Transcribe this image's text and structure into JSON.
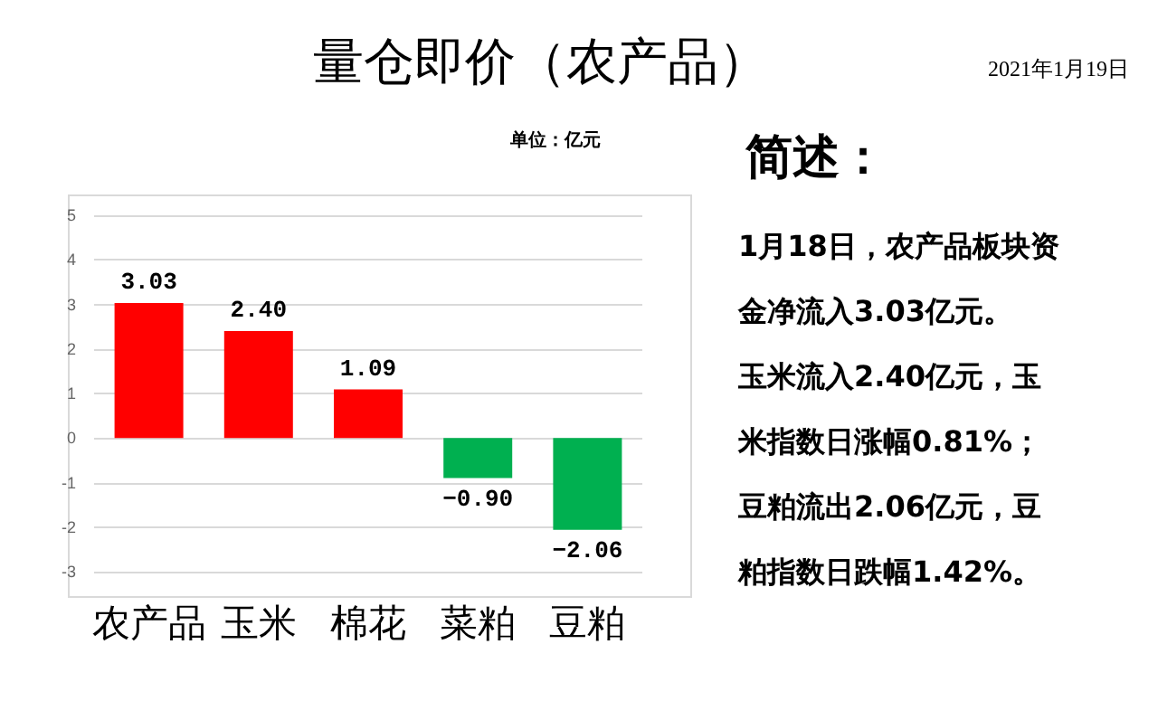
{
  "chart_data": {
    "type": "bar",
    "title": "量仓即价（农产品）",
    "ylabel": "单位：亿元",
    "categories": [
      "农产品",
      "玉米",
      "棉花",
      "菜粕",
      "豆粕"
    ],
    "values": [
      3.03,
      2.4,
      1.09,
      -0.9,
      -2.06
    ],
    "colors": [
      "#ff0000",
      "#ff0000",
      "#ff0000",
      "#00b050",
      "#00b050"
    ],
    "ylim": [
      -3,
      5
    ],
    "yticks": [
      -3,
      -2,
      -1,
      0,
      1,
      2,
      3,
      4,
      5
    ],
    "grid": "y",
    "data_labels": true,
    "value_labels": [
      "3.03",
      "2.40",
      "1.09",
      "−0.90",
      "−2.06"
    ],
    "annotations": [
      "2021年1月19日",
      "简述：",
      "1月18日，农产品板块资",
      "金净流入3.03亿元。",
      "玉米流入2.40亿元，玉",
      "米指数日涨幅0.81%；",
      "豆粕流出2.06亿元，豆",
      "粕指数日跌幅1.42%。"
    ]
  }
}
